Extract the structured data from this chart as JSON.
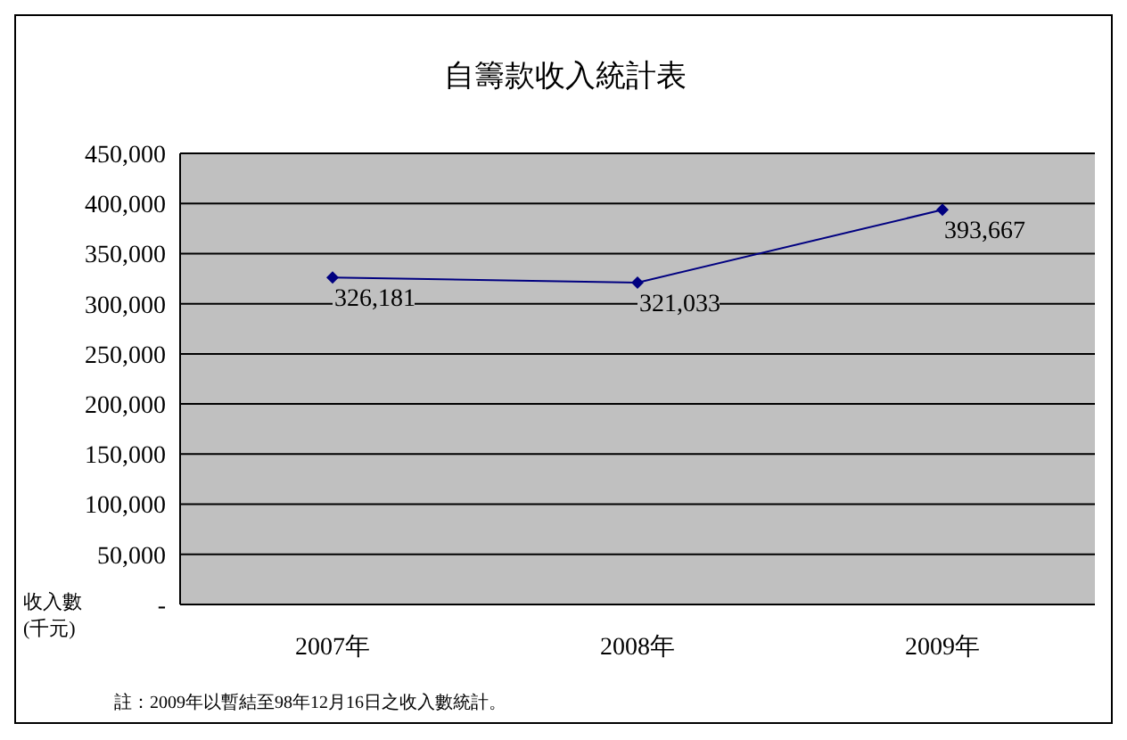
{
  "chart_data": {
    "type": "line",
    "title": "自籌款收入統計表",
    "ylabel": "收入數(千元)",
    "categories": [
      "2007年",
      "2008年",
      "2009年"
    ],
    "series": [
      {
        "color": "#000080",
        "values": [
          326181,
          321033,
          393667
        ],
        "value_labels": [
          "326,181",
          "321,033",
          "393,667"
        ]
      }
    ],
    "ylim": [
      0,
      450000
    ],
    "yticks": [
      {
        "value": 0,
        "label": "-"
      },
      {
        "value": 50000,
        "label": "50,000"
      },
      {
        "value": 100000,
        "label": "100,000"
      },
      {
        "value": 150000,
        "label": "150,000"
      },
      {
        "value": 200000,
        "label": "200,000"
      },
      {
        "value": 250000,
        "label": "250,000"
      },
      {
        "value": 300000,
        "label": "300,000"
      },
      {
        "value": 350000,
        "label": "350,000"
      },
      {
        "value": 400000,
        "label": "400,000"
      },
      {
        "value": 450000,
        "label": "450,000"
      }
    ],
    "grid": "y",
    "marker": "diamond",
    "line_style": "solid",
    "annotations": [
      "註：2009年以暫結至98年12月16日之收入數統計。"
    ]
  }
}
